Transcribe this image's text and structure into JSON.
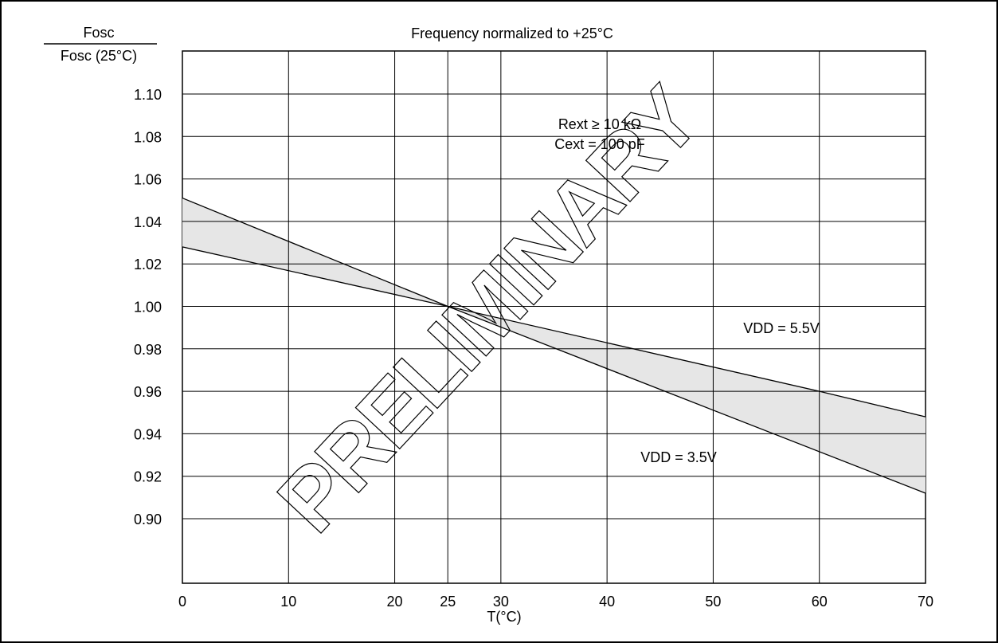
{
  "chart_data": {
    "type": "area",
    "title": "Frequency normalized to +25°C",
    "ylabel": {
      "numerator": "Fosc",
      "denominator": "Fosc (25°C)"
    },
    "xlabel": "T(°C)",
    "x_ticks": [
      0,
      10,
      20,
      25,
      30,
      40,
      50,
      60,
      70
    ],
    "y_ticks": [
      "1.10",
      "1.08",
      "1.06",
      "1.04",
      "1.02",
      "1.00",
      "0.98",
      "0.96",
      "0.94",
      "0.92",
      "0.90"
    ],
    "xlim": [
      0,
      70
    ],
    "ylim": [
      0.88,
      1.115
    ],
    "grid": true,
    "conditions": [
      "Rext ≥ 10 kΩ",
      "Cext = 100 pF"
    ],
    "watermark": "PRELIMINARY",
    "series": [
      {
        "name": "VDD = 5.5V",
        "x": [
          0,
          25,
          60,
          70
        ],
        "y": [
          1.028,
          1.0,
          0.96,
          0.948
        ]
      },
      {
        "name": "VDD = 3.5V",
        "x": [
          0,
          25,
          70
        ],
        "y": [
          1.051,
          1.0,
          0.912
        ]
      }
    ],
    "fill_between": true,
    "fill_color": "#e6e6e6"
  }
}
